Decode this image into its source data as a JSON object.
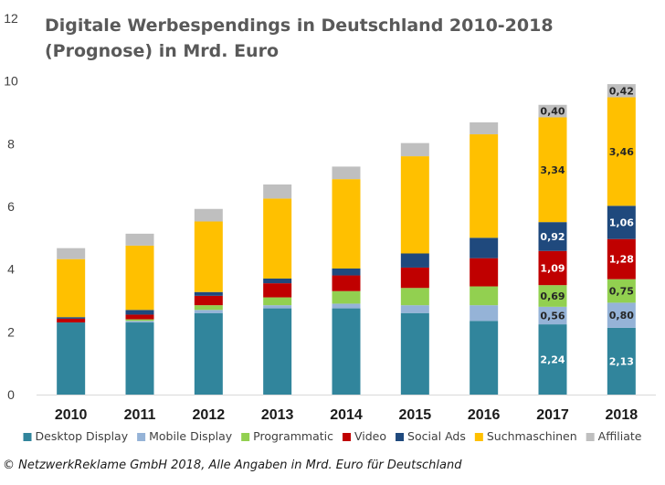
{
  "footer": "© NetzwerkReklame GmbH 2018, Alle Angaben in Mrd. Euro für Deutschland",
  "chart_data": {
    "type": "bar",
    "stacked": true,
    "title_lines": [
      "Digitale Werbespendings in Deutschland 2010-2018",
      "(Prognose) in Mrd. Euro"
    ],
    "categories": [
      "2010",
      "2011",
      "2012",
      "2013",
      "2014",
      "2015",
      "2016",
      "2017",
      "2018"
    ],
    "ylim": [
      0,
      12
    ],
    "yticks": [
      0,
      2,
      4,
      6,
      8,
      10,
      12
    ],
    "legend_position": "bottom",
    "series": [
      {
        "name": "Desktop Display",
        "color": "#31859c",
        "values": [
          2.3,
          2.3,
          2.6,
          2.75,
          2.75,
          2.6,
          2.35,
          2.24,
          2.13
        ],
        "labels": [
          null,
          null,
          null,
          null,
          null,
          null,
          null,
          "2,24",
          "2,13"
        ],
        "label_color": "#ffffff"
      },
      {
        "name": "Mobile Display",
        "color": "#95b3d7",
        "values": [
          0.0,
          0.05,
          0.1,
          0.1,
          0.15,
          0.25,
          0.5,
          0.56,
          0.8
        ],
        "labels": [
          null,
          null,
          null,
          null,
          null,
          null,
          null,
          "0,56",
          "0,80"
        ],
        "label_color": "#262626"
      },
      {
        "name": "Programmatic",
        "color": "#92d050",
        "values": [
          0.0,
          0.05,
          0.15,
          0.25,
          0.4,
          0.55,
          0.6,
          0.69,
          0.75
        ],
        "labels": [
          null,
          null,
          null,
          null,
          null,
          null,
          null,
          "0,69",
          "0,75"
        ],
        "label_color": "#262626"
      },
      {
        "name": "Video",
        "color": "#c00000",
        "values": [
          0.12,
          0.15,
          0.3,
          0.45,
          0.5,
          0.65,
          0.9,
          1.09,
          1.28
        ],
        "labels": [
          null,
          null,
          null,
          null,
          null,
          null,
          null,
          "1,09",
          "1,28"
        ],
        "label_color": "#ffffff"
      },
      {
        "name": "Social Ads",
        "color": "#1f497d",
        "values": [
          0.05,
          0.15,
          0.12,
          0.15,
          0.22,
          0.45,
          0.65,
          0.92,
          1.06
        ],
        "labels": [
          null,
          null,
          null,
          null,
          null,
          null,
          null,
          "0,92",
          "1,06"
        ],
        "label_color": "#ffffff"
      },
      {
        "name": "Suchmaschinen",
        "color": "#ffc000",
        "values": [
          1.85,
          2.05,
          2.25,
          2.55,
          2.85,
          3.1,
          3.3,
          3.34,
          3.46
        ],
        "labels": [
          null,
          null,
          null,
          null,
          null,
          null,
          null,
          "3,34",
          "3,46"
        ],
        "label_color": "#262626"
      },
      {
        "name": "Affiliate",
        "color": "#bfbfbf",
        "values": [
          0.35,
          0.38,
          0.4,
          0.45,
          0.4,
          0.42,
          0.38,
          0.4,
          0.42
        ],
        "labels": [
          null,
          null,
          null,
          null,
          null,
          null,
          null,
          "0,40",
          "0,42"
        ],
        "label_color": "#262626"
      }
    ]
  }
}
